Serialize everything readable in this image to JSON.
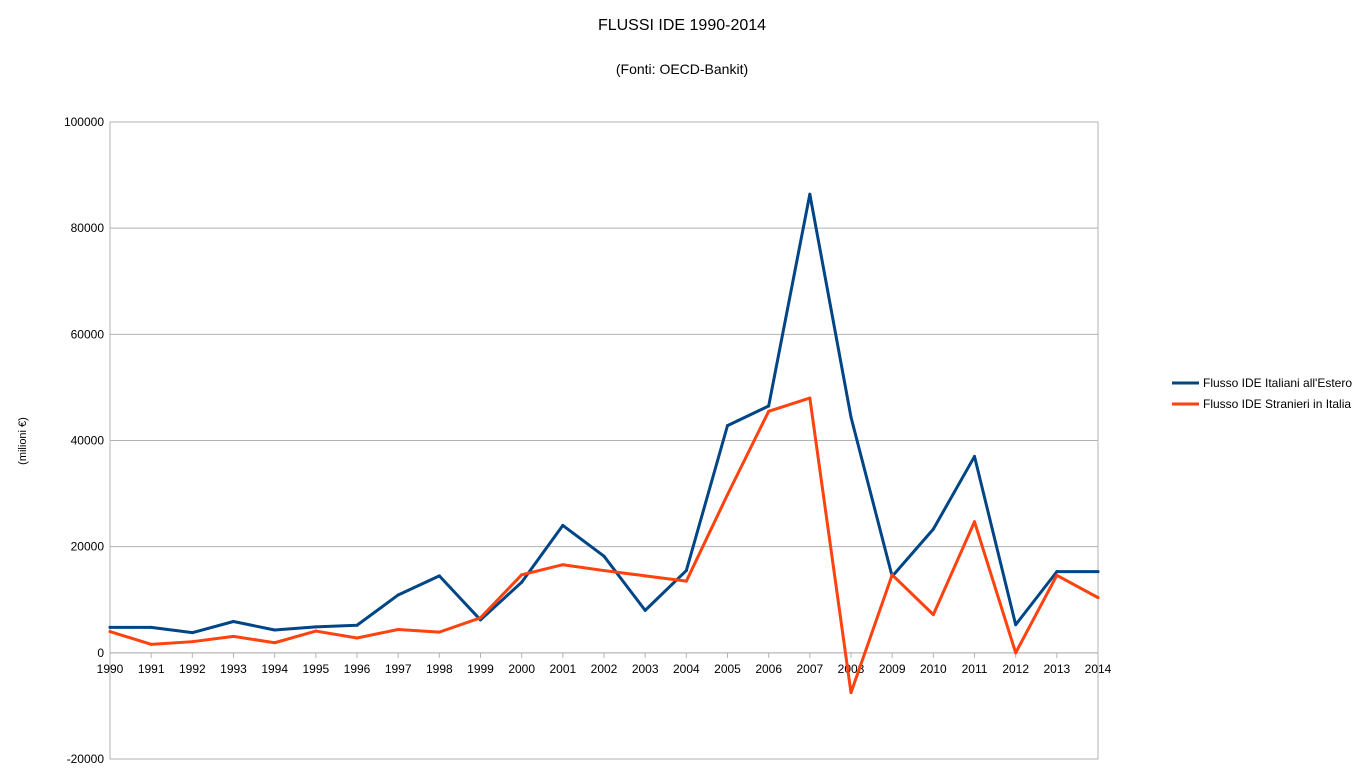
{
  "chart_data": {
    "type": "line",
    "title": "FLUSSI IDE 1990-2014",
    "subtitle": "(Fonti: OECD-Bankit)",
    "xlabel": "",
    "ylabel": "(milioni €)",
    "ylim": [
      -20000,
      100000
    ],
    "yticks": [
      -20000,
      0,
      20000,
      40000,
      60000,
      80000,
      100000
    ],
    "grid": true,
    "legend_position": "right",
    "categories": [
      "1990",
      "1991",
      "1992",
      "1993",
      "1994",
      "1995",
      "1996",
      "1997",
      "1998",
      "1999",
      "2000",
      "2001",
      "2002",
      "2003",
      "2004",
      "2005",
      "2006",
      "2007",
      "2008",
      "2009",
      "2010",
      "2011",
      "2012",
      "2013",
      "2014"
    ],
    "series": [
      {
        "name": "Flusso IDE Italiani all'Estero",
        "color": "#004586",
        "values": [
          4800,
          4800,
          3800,
          5900,
          4300,
          4900,
          5200,
          10900,
          14500,
          6200,
          13300,
          24000,
          18200,
          8000,
          15500,
          42800,
          46500,
          86400,
          44400,
          14400,
          23300,
          37000,
          5300,
          15300,
          15300
        ]
      },
      {
        "name": "Flusso IDE Stranieri in Italia",
        "color": "#ff420e",
        "values": [
          4000,
          1600,
          2100,
          3100,
          1900,
          4100,
          2800,
          4400,
          3900,
          6600,
          14700,
          16600,
          15500,
          14500,
          13500,
          29800,
          45500,
          48000,
          -7500,
          14700,
          7200,
          24700,
          0,
          14600,
          10400
        ]
      }
    ]
  }
}
